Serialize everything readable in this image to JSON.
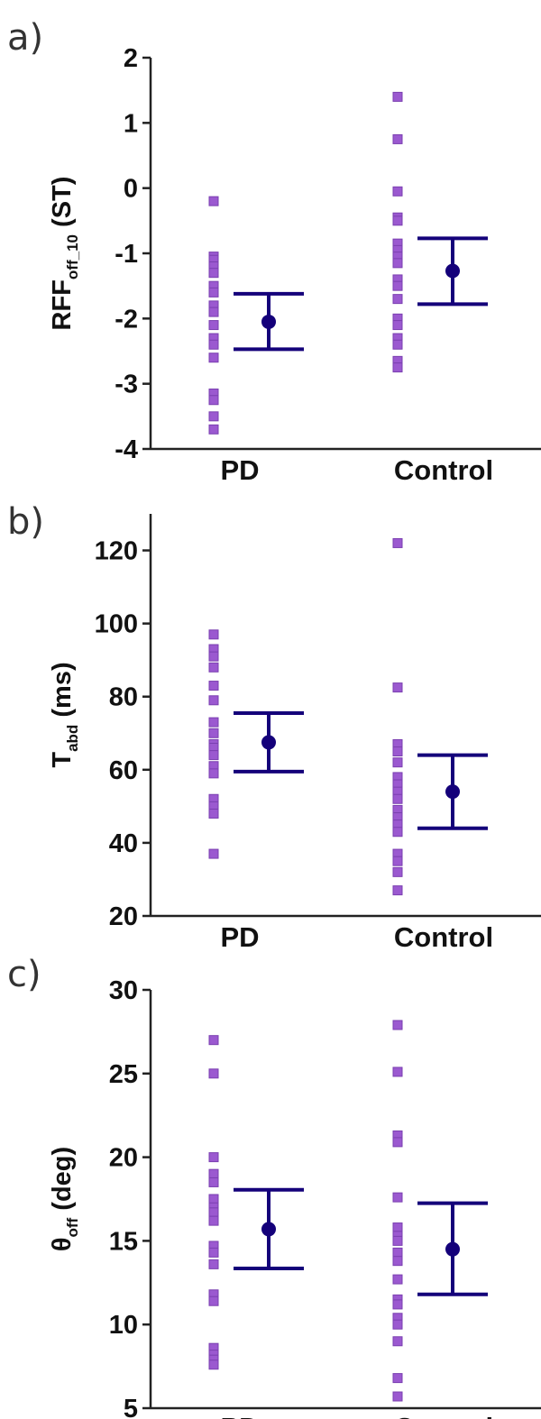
{
  "colors": {
    "points_fill": "#9b59d0",
    "points_stroke": "#7a3fb0",
    "summary": "#14007a",
    "axis": "#222222"
  },
  "chart_data": [
    {
      "panel": "a)",
      "type": "scatter",
      "ylabel": {
        "main": "RFF",
        "sub": "off_10",
        "unit": " (ST)"
      },
      "ylim": [
        -4,
        2
      ],
      "yticks": [
        2,
        1,
        0,
        -1,
        -2,
        -3,
        -4
      ],
      "categories": [
        "PD",
        "Control"
      ],
      "points": [
        [
          -0.2,
          -1.05,
          -1.1,
          -1.2,
          -1.3,
          -1.5,
          -1.6,
          -1.8,
          -1.9,
          -2.1,
          -2.3,
          -2.4,
          -2.6,
          -3.15,
          -3.25,
          -3.5,
          -3.7
        ],
        [
          1.4,
          0.75,
          -0.05,
          -0.45,
          -0.5,
          -0.85,
          -0.95,
          -1.05,
          -1.15,
          -1.4,
          -1.5,
          -1.7,
          -2.0,
          -2.1,
          -2.3,
          -2.4,
          -2.65,
          -2.75
        ]
      ],
      "summary": [
        {
          "mean": -2.05,
          "upper": -1.62,
          "lower": -2.47
        },
        {
          "mean": -1.27,
          "upper": -0.77,
          "lower": -1.78
        }
      ]
    },
    {
      "panel": "b)",
      "type": "scatter",
      "ylabel": {
        "main": "T",
        "sub": "abd",
        "unit": " (ms)"
      },
      "ylim": [
        20,
        130
      ],
      "yticks": [
        120,
        100,
        80,
        60,
        40,
        20
      ],
      "categories": [
        "PD",
        "Control"
      ],
      "points": [
        [
          97,
          93,
          91,
          88,
          83,
          79,
          73,
          70,
          67,
          66,
          64,
          61,
          59,
          52,
          50,
          48,
          37
        ],
        [
          122,
          82.5,
          67,
          65,
          62,
          58,
          56,
          54,
          52,
          49,
          47,
          45,
          43,
          37,
          35,
          32,
          27
        ]
      ],
      "summary": [
        {
          "mean": 67.5,
          "upper": 75.5,
          "lower": 59.5
        },
        {
          "mean": 54,
          "upper": 64,
          "lower": 44
        }
      ]
    },
    {
      "panel": "c)",
      "type": "scatter",
      "ylabel": {
        "main": "θ",
        "sub": "off",
        "unit": " (deg)"
      },
      "ylim": [
        5,
        30
      ],
      "yticks": [
        30,
        25,
        20,
        15,
        10,
        5
      ],
      "categories": [
        "PD",
        "Control"
      ],
      "points": [
        [
          27,
          25,
          20,
          19,
          18.5,
          17.5,
          17,
          16.7,
          16.2,
          14.7,
          14.3,
          13.6,
          11.8,
          11.4,
          8.6,
          8.2,
          7.9,
          7.6
        ],
        [
          27.9,
          25.1,
          21.3,
          20.9,
          17.6,
          15.8,
          15.3,
          15.0,
          14.3,
          13.8,
          12.7,
          11.5,
          11.2,
          10.4,
          10.0,
          9.0,
          6.8,
          5.7
        ]
      ],
      "summary": [
        {
          "mean": 15.7,
          "upper": 18.05,
          "lower": 13.35
        },
        {
          "mean": 14.5,
          "upper": 17.25,
          "lower": 11.8
        }
      ]
    }
  ]
}
